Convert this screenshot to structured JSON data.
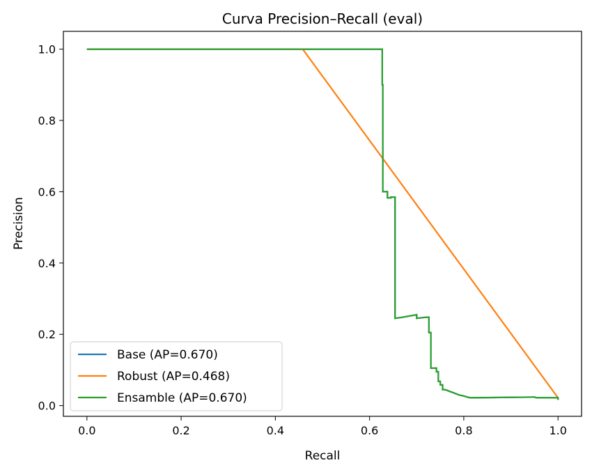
{
  "chart_data": {
    "type": "line",
    "title": "Curva Precision–Recall (eval)",
    "xlabel": "Recall",
    "ylabel": "Precision",
    "xlim": [
      -0.05,
      1.05
    ],
    "ylim": [
      -0.03,
      1.05
    ],
    "xticks": [
      0.0,
      0.2,
      0.4,
      0.6,
      0.8,
      1.0
    ],
    "xtick_labels": [
      "0.0",
      "0.2",
      "0.4",
      "0.6",
      "0.8",
      "1.0"
    ],
    "yticks": [
      0.0,
      0.2,
      0.4,
      0.6,
      0.8,
      1.0
    ],
    "ytick_labels": [
      "0.0",
      "0.2",
      "0.4",
      "0.6",
      "0.8",
      "1.0"
    ],
    "grid": false,
    "legend_position": "lower-left",
    "series": [
      {
        "name": "Base (AP=0.670)",
        "color": "#1f77b4",
        "x": [
          0.0,
          0.627,
          0.627,
          0.628,
          0.628,
          0.63,
          0.63,
          0.638,
          0.638,
          0.645,
          0.645,
          0.654,
          0.654,
          0.67,
          0.7,
          0.7,
          0.72,
          0.72,
          0.726,
          0.726,
          0.73,
          0.73,
          0.742,
          0.742,
          0.746,
          0.746,
          0.75,
          0.75,
          0.755,
          0.755,
          0.76,
          0.77,
          0.78,
          0.79,
          0.8,
          0.81,
          0.815,
          0.95,
          0.955,
          1.0,
          1.0
        ],
        "y": [
          1.0,
          1.0,
          0.9,
          0.9,
          0.6,
          0.6,
          0.6,
          0.6,
          0.583,
          0.583,
          0.585,
          0.585,
          0.245,
          0.248,
          0.255,
          0.245,
          0.248,
          0.248,
          0.248,
          0.205,
          0.205,
          0.105,
          0.105,
          0.095,
          0.095,
          0.068,
          0.068,
          0.058,
          0.058,
          0.045,
          0.045,
          0.04,
          0.035,
          0.03,
          0.027,
          0.023,
          0.022,
          0.024,
          0.022,
          0.022,
          0.016
        ]
      },
      {
        "name": "Robust (AP=0.468)",
        "color": "#ff7f0e",
        "x": [
          0.0,
          0.458,
          1.0
        ],
        "y": [
          1.0,
          1.0,
          0.022
        ]
      },
      {
        "name": "Ensamble (AP=0.670)",
        "color": "#2ca02c",
        "x": [
          0.0,
          0.627,
          0.627,
          0.628,
          0.628,
          0.63,
          0.63,
          0.638,
          0.638,
          0.645,
          0.645,
          0.654,
          0.654,
          0.67,
          0.7,
          0.7,
          0.72,
          0.72,
          0.726,
          0.726,
          0.73,
          0.73,
          0.742,
          0.742,
          0.746,
          0.746,
          0.75,
          0.75,
          0.755,
          0.755,
          0.76,
          0.77,
          0.78,
          0.79,
          0.8,
          0.81,
          0.815,
          0.95,
          0.955,
          1.0,
          1.0
        ],
        "y": [
          1.0,
          1.0,
          0.9,
          0.9,
          0.6,
          0.6,
          0.6,
          0.6,
          0.583,
          0.583,
          0.585,
          0.585,
          0.245,
          0.248,
          0.255,
          0.245,
          0.248,
          0.248,
          0.248,
          0.205,
          0.205,
          0.105,
          0.105,
          0.095,
          0.095,
          0.068,
          0.068,
          0.058,
          0.058,
          0.045,
          0.045,
          0.04,
          0.035,
          0.03,
          0.027,
          0.023,
          0.022,
          0.024,
          0.022,
          0.022,
          0.016
        ]
      }
    ]
  }
}
